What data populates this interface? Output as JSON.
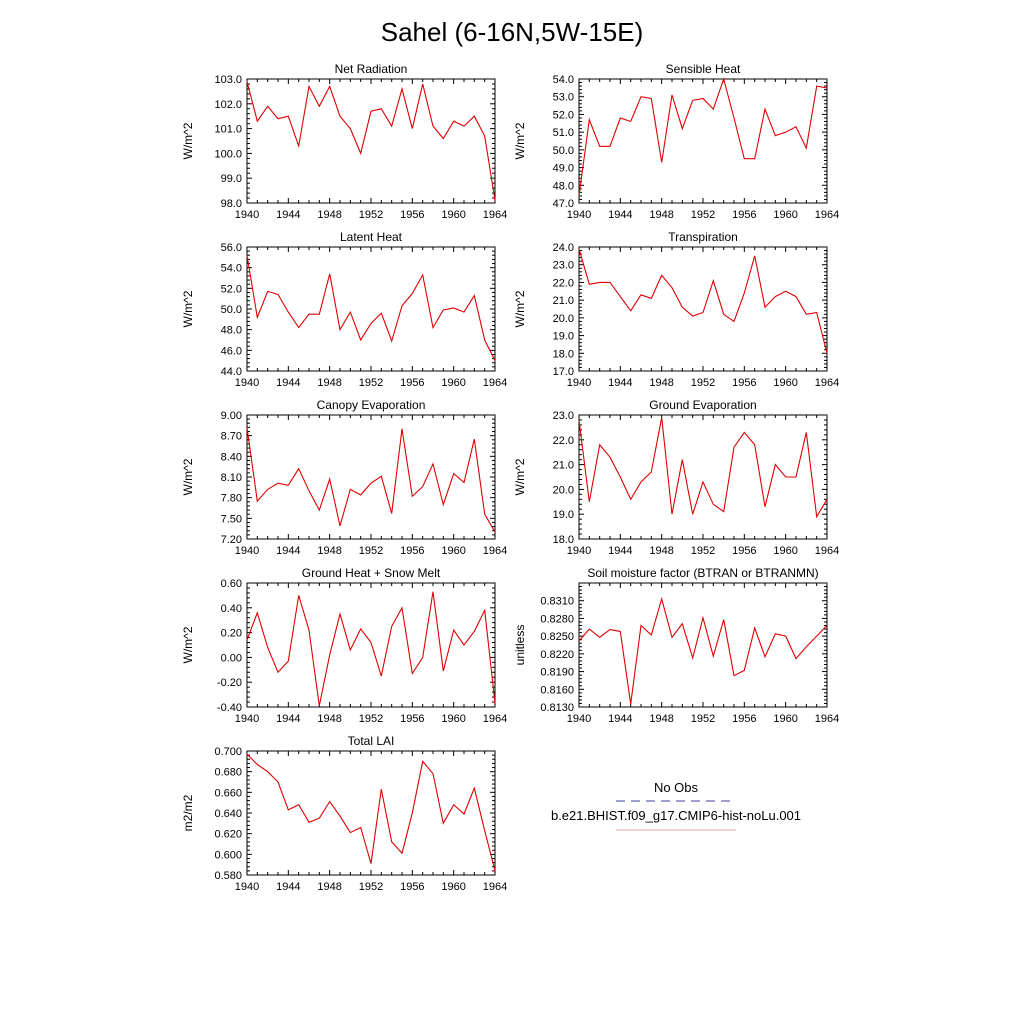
{
  "title": "Sahel (6-16N,5W-15E)",
  "legend": {
    "items": [
      {
        "label": "No Obs",
        "color": "#3c3ca0",
        "dash": true
      },
      {
        "label": "b.e21.BHIST.f09_g17.CMIP6-hist-noLu.001",
        "color": "#e8a0a0",
        "dash": false
      }
    ]
  },
  "chart_data": [
    {
      "type": "line",
      "title": "Net Radiation",
      "ylabel": "W/m^2",
      "xlim": [
        1940,
        1964
      ],
      "ylim": [
        98.0,
        103.0
      ],
      "xticks": [
        "1940",
        "1944",
        "1948",
        "1952",
        "1956",
        "1960",
        "1964"
      ],
      "yticks": [
        "98.0",
        "99.0",
        "100.0",
        "101.0",
        "102.0",
        "103.0"
      ],
      "line_color": "#e00000",
      "x": [
        1940,
        1941,
        1942,
        1943,
        1944,
        1945,
        1946,
        1947,
        1948,
        1949,
        1950,
        1951,
        1952,
        1953,
        1954,
        1955,
        1956,
        1957,
        1958,
        1959,
        1960,
        1961,
        1962,
        1963,
        1964
      ],
      "values": [
        102.9,
        101.3,
        101.9,
        101.4,
        101.5,
        100.3,
        102.7,
        101.9,
        102.7,
        101.5,
        101.0,
        100.0,
        101.7,
        101.8,
        101.1,
        102.6,
        101.0,
        102.8,
        101.1,
        100.6,
        101.3,
        101.1,
        101.5,
        100.7,
        98.1
      ]
    },
    {
      "type": "line",
      "title": "Sensible Heat",
      "ylabel": "W/m^2",
      "xlim": [
        1940,
        1964
      ],
      "ylim": [
        47.0,
        54.0
      ],
      "xticks": [
        "1940",
        "1944",
        "1948",
        "1952",
        "1956",
        "1960",
        "1964"
      ],
      "yticks": [
        "47.0",
        "48.0",
        "49.0",
        "50.0",
        "51.0",
        "52.0",
        "53.0",
        "54.0"
      ],
      "line_color": "#e00000",
      "x": [
        1940,
        1941,
        1942,
        1943,
        1944,
        1945,
        1946,
        1947,
        1948,
        1949,
        1950,
        1951,
        1952,
        1953,
        1954,
        1955,
        1956,
        1957,
        1958,
        1959,
        1960,
        1961,
        1962,
        1963,
        1964
      ],
      "values": [
        47.4,
        51.7,
        50.2,
        50.2,
        51.8,
        51.6,
        53.0,
        52.9,
        49.3,
        53.1,
        51.2,
        52.8,
        52.9,
        52.3,
        54.0,
        51.8,
        49.5,
        49.5,
        52.3,
        50.8,
        51.0,
        51.3,
        50.1,
        53.6,
        53.5
      ]
    },
    {
      "type": "line",
      "title": "Latent Heat",
      "ylabel": "W/m^2",
      "xlim": [
        1940,
        1964
      ],
      "ylim": [
        44.0,
        56.0
      ],
      "xticks": [
        "1940",
        "1944",
        "1948",
        "1952",
        "1956",
        "1960",
        "1964"
      ],
      "yticks": [
        "44.0",
        "46.0",
        "48.0",
        "50.0",
        "52.0",
        "54.0",
        "56.0"
      ],
      "line_color": "#e00000",
      "x": [
        1940,
        1941,
        1942,
        1943,
        1944,
        1945,
        1946,
        1947,
        1948,
        1949,
        1950,
        1951,
        1952,
        1953,
        1954,
        1955,
        1956,
        1957,
        1958,
        1959,
        1960,
        1961,
        1962,
        1963,
        1964
      ],
      "values": [
        55.2,
        49.2,
        51.7,
        51.4,
        49.7,
        48.2,
        49.5,
        49.5,
        53.4,
        48.0,
        49.7,
        47.0,
        48.6,
        49.6,
        46.9,
        50.3,
        51.5,
        53.3,
        48.2,
        49.9,
        50.1,
        49.7,
        51.3,
        47.0,
        45.0
      ]
    },
    {
      "type": "line",
      "title": "Transpiration",
      "ylabel": "W/m^2",
      "xlim": [
        1940,
        1964
      ],
      "ylim": [
        17.0,
        24.0
      ],
      "xticks": [
        "1940",
        "1944",
        "1948",
        "1952",
        "1956",
        "1960",
        "1964"
      ],
      "yticks": [
        "17.0",
        "18.0",
        "19.0",
        "20.0",
        "21.0",
        "22.0",
        "23.0",
        "24.0"
      ],
      "line_color": "#e00000",
      "x": [
        1940,
        1941,
        1942,
        1943,
        1944,
        1945,
        1946,
        1947,
        1948,
        1949,
        1950,
        1951,
        1952,
        1953,
        1954,
        1955,
        1956,
        1957,
        1958,
        1959,
        1960,
        1961,
        1962,
        1963,
        1964
      ],
      "values": [
        23.9,
        21.9,
        22.0,
        22.0,
        21.2,
        20.4,
        21.3,
        21.1,
        22.4,
        21.7,
        20.6,
        20.1,
        20.3,
        22.1,
        20.2,
        19.8,
        21.4,
        23.5,
        20.6,
        21.2,
        21.5,
        21.2,
        20.2,
        20.3,
        18.0
      ]
    },
    {
      "type": "line",
      "title": "Canopy Evaporation",
      "ylabel": "W/m^2",
      "xlim": [
        1940,
        1964
      ],
      "ylim": [
        7.2,
        9.0
      ],
      "xticks": [
        "1940",
        "1944",
        "1948",
        "1952",
        "1956",
        "1960",
        "1964"
      ],
      "yticks": [
        "7.20",
        "7.50",
        "7.80",
        "8.10",
        "8.40",
        "8.70",
        "9.00"
      ],
      "line_color": "#e00000",
      "x": [
        1940,
        1941,
        1942,
        1943,
        1944,
        1945,
        1946,
        1947,
        1948,
        1949,
        1950,
        1951,
        1952,
        1953,
        1954,
        1955,
        1956,
        1957,
        1958,
        1959,
        1960,
        1961,
        1962,
        1963,
        1964
      ],
      "values": [
        8.82,
        7.75,
        7.92,
        8.01,
        7.98,
        8.22,
        7.9,
        7.62,
        8.07,
        7.39,
        7.92,
        7.84,
        8.01,
        8.11,
        7.57,
        8.8,
        7.82,
        7.96,
        8.29,
        7.7,
        8.15,
        8.02,
        8.65,
        7.56,
        7.3
      ]
    },
    {
      "type": "line",
      "title": "Ground Evaporation",
      "ylabel": "W/m^2",
      "xlim": [
        1940,
        1964
      ],
      "ylim": [
        18.0,
        23.0
      ],
      "xticks": [
        "1940",
        "1944",
        "1948",
        "1952",
        "1956",
        "1960",
        "1964"
      ],
      "yticks": [
        "18.0",
        "19.0",
        "20.0",
        "21.0",
        "22.0",
        "23.0"
      ],
      "line_color": "#e00000",
      "x": [
        1940,
        1941,
        1942,
        1943,
        1944,
        1945,
        1946,
        1947,
        1948,
        1949,
        1950,
        1951,
        1952,
        1953,
        1954,
        1955,
        1956,
        1957,
        1958,
        1959,
        1960,
        1961,
        1962,
        1963,
        1964
      ],
      "values": [
        22.8,
        19.5,
        21.8,
        21.3,
        20.5,
        19.6,
        20.3,
        20.7,
        22.9,
        19.0,
        21.2,
        19.0,
        20.3,
        19.4,
        19.1,
        21.7,
        22.3,
        21.8,
        19.3,
        21.0,
        20.5,
        20.5,
        22.3,
        18.9,
        19.6
      ]
    },
    {
      "type": "line",
      "title": "Ground Heat + Snow Melt",
      "ylabel": "W/m^2",
      "xlim": [
        1940,
        1964
      ],
      "ylim": [
        -0.4,
        0.6
      ],
      "xticks": [
        "1940",
        "1944",
        "1948",
        "1952",
        "1956",
        "1960",
        "1964"
      ],
      "yticks": [
        "-0.40",
        "-0.20",
        "0.00",
        "0.20",
        "0.40",
        "0.60"
      ],
      "line_color": "#e00000",
      "x": [
        1940,
        1941,
        1942,
        1943,
        1944,
        1945,
        1946,
        1947,
        1948,
        1949,
        1950,
        1951,
        1952,
        1953,
        1954,
        1955,
        1956,
        1957,
        1958,
        1959,
        1960,
        1961,
        1962,
        1963,
        1964
      ],
      "values": [
        0.14,
        0.36,
        0.08,
        -0.12,
        -0.03,
        0.5,
        0.22,
        -0.39,
        0.02,
        0.35,
        0.06,
        0.23,
        0.12,
        -0.15,
        0.25,
        0.4,
        -0.13,
        0.0,
        0.53,
        -0.11,
        0.22,
        0.1,
        0.21,
        0.38,
        -0.37
      ]
    },
    {
      "type": "line",
      "title": "Soil moisture factor (BTRAN or BTRANMN)",
      "ylabel": "unitless",
      "xlim": [
        1940,
        1964
      ],
      "ylim": [
        0.813,
        0.834
      ],
      "xticks": [
        "1940",
        "1944",
        "1948",
        "1952",
        "1956",
        "1960",
        "1964"
      ],
      "yticks": [
        "0.8130",
        "0.8160",
        "0.8190",
        "0.8220",
        "0.8250",
        "0.8280",
        "0.8310"
      ],
      "line_color": "#e00000",
      "x": [
        1940,
        1941,
        1942,
        1943,
        1944,
        1945,
        1946,
        1947,
        1948,
        1949,
        1950,
        1951,
        1952,
        1953,
        1954,
        1955,
        1956,
        1957,
        1958,
        1959,
        1960,
        1961,
        1962,
        1963,
        1964
      ],
      "values": [
        0.8242,
        0.8262,
        0.8248,
        0.8261,
        0.8258,
        0.8135,
        0.8268,
        0.8252,
        0.8313,
        0.8248,
        0.8271,
        0.8213,
        0.8281,
        0.8216,
        0.8278,
        0.8183,
        0.8192,
        0.8264,
        0.8215,
        0.8254,
        0.825,
        0.8212,
        0.8232,
        0.825,
        0.8268
      ]
    },
    {
      "type": "line",
      "title": "Total LAI",
      "ylabel": "m2/m2",
      "xlim": [
        1940,
        1964
      ],
      "ylim": [
        0.58,
        0.7
      ],
      "xticks": [
        "1940",
        "1944",
        "1948",
        "1952",
        "1956",
        "1960",
        "1964"
      ],
      "yticks": [
        "0.580",
        "0.600",
        "0.620",
        "0.640",
        "0.660",
        "0.680",
        "0.700"
      ],
      "line_color": "#e00000",
      "x": [
        1940,
        1941,
        1942,
        1943,
        1944,
        1945,
        1946,
        1947,
        1948,
        1949,
        1950,
        1951,
        1952,
        1953,
        1954,
        1955,
        1956,
        1957,
        1958,
        1959,
        1960,
        1961,
        1962,
        1963,
        1964
      ],
      "values": [
        0.697,
        0.687,
        0.68,
        0.67,
        0.643,
        0.648,
        0.631,
        0.635,
        0.651,
        0.637,
        0.621,
        0.626,
        0.591,
        0.663,
        0.612,
        0.601,
        0.64,
        0.69,
        0.678,
        0.63,
        0.648,
        0.639,
        0.664,
        0.623,
        0.584
      ]
    }
  ]
}
